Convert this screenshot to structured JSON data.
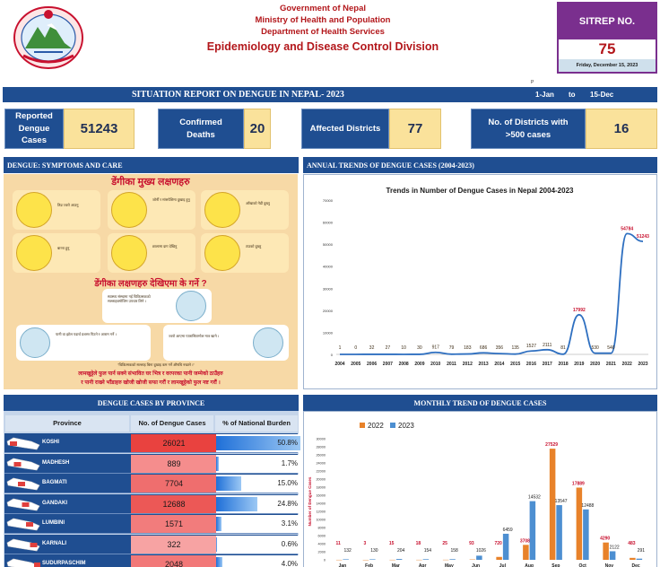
{
  "header": {
    "line1": "Government of Nepal",
    "line2": "Ministry of Health and Population",
    "line3": "Department of Health Services",
    "line4": "Epidemiology and Disease Control Division"
  },
  "sitrep": {
    "label": "SITREP NO.",
    "number": "75",
    "date": "Friday, December 15, 2023"
  },
  "banner": {
    "title": "SITUATION REPORT ON DENGUE IN NEPAL- 2023",
    "from": "1-Jan",
    "to_word": "to",
    "to": "15-Dec",
    "marker": "P"
  },
  "stats": [
    {
      "label": "Reported Dengue Cases",
      "value": "51243"
    },
    {
      "label": "Confirmed Deaths",
      "value": "20"
    },
    {
      "label": "Affected Districts",
      "value": "77"
    },
    {
      "label": "No. of Districts with >500 cases",
      "value": "16"
    }
  ],
  "sections": {
    "symptoms": "DENGUE: SYMPTOMS AND CARE",
    "annual": "ANNUAL TRENDS OF DENGUE CASES (2004-2023)",
    "province": "DENGUE CASES BY PROVINCE",
    "monthly": "MONTHLY TREND OF DENGUE CASES"
  },
  "poster": {
    "title": "डेंगीका मुख्य लक्षणहरु",
    "subtitle": "डेंगीका लक्षणहरु देखिएमा के गर्ने ?",
    "footer1": "लामखुट्टेले फुल पार्न सक्ने संभावित घर भित्र र वरपरका पानी जम्मेको ठाउँहरु",
    "footer2": "र पानी राख्ने भाँडाहरु खोजी खोजी सफा गरौं र लामखुट्टेको फुल नष्ट गरौं ।",
    "symptoms": [
      "तिव्र ज्वरो आउनु",
      "जोर्नी र मांसपेशिमा दुखाइ हुनु",
      "आँखाको गेडी दुख्नु",
      "बान्ता हुनु",
      "छालामा दाग देखिनु",
      "टाउको दुख्नु"
    ],
    "care": [
      "स्वास्थ्य संस्थामा गई चिकित्सकको सल्लाहबमोजिम उपचार लिने ।",
      "पानी वा झोल पदार्थ प्रशस्त पिउने र आराम गर्ने ।",
      "ज्वरो आएमा प्यारासिटामोल मात्र खाने ।"
    ],
    "note": "\"चिकित्सकको सल्लाह बिना दुखाइ कम गर्ने औषधि नखाने ।\""
  },
  "province_table": {
    "headers": [
      "Province",
      "No. of Dengue Cases",
      "% of National Burden"
    ],
    "rows": [
      {
        "name": "KOSHI",
        "cases": "26021",
        "burden_text": "50.8%",
        "burden": 50.8
      },
      {
        "name": "MADHESH",
        "cases": "889",
        "burden_text": "1.7%",
        "burden": 1.7
      },
      {
        "name": "BAGMATI",
        "cases": "7704",
        "burden_text": "15.0%",
        "burden": 15.0
      },
      {
        "name": "GANDAKI",
        "cases": "12688",
        "burden_text": "24.8%",
        "burden": 24.8
      },
      {
        "name": "LUMBINI",
        "cases": "1571",
        "burden_text": "3.1%",
        "burden": 3.1
      },
      {
        "name": "KARNALI",
        "cases": "322",
        "burden_text": "0.6%",
        "burden": 0.6
      },
      {
        "name": "SUDURPASCHIM",
        "cases": "2048",
        "burden_text": "4.0%",
        "burden": 4.0
      }
    ]
  },
  "colors": {
    "navy": "#1f4e91",
    "gold": "#fae29b",
    "red": "#b3171b",
    "purple": "#7a2f8e",
    "series2022": "#e8822a",
    "series2023": "#4d8fd1"
  },
  "chart_data": [
    {
      "type": "line",
      "title": "Trends in Number of Dengue Cases in Nepal 2004-2023",
      "x": [
        "2004",
        "2005",
        "2006",
        "2007",
        "2008",
        "2009",
        "2010",
        "2011",
        "2012",
        "2013",
        "2014",
        "2015",
        "2016",
        "2017",
        "2018",
        "2019",
        "2020",
        "2021",
        "2022",
        "2023"
      ],
      "series": [
        {
          "values": [
            1,
            0,
            32,
            27,
            10,
            30,
            917,
            79,
            183,
            686,
            356,
            135,
            1527,
            2111,
            81,
            17992,
            530,
            540,
            54784,
            51243
          ],
          "labels": [
            "1",
            "0",
            "32",
            "27",
            "10",
            "30",
            "917",
            "79",
            "183",
            "686",
            "356",
            "135",
            "1527",
            "2111",
            "81",
            "17992",
            "530",
            "540",
            "54784",
            "51243"
          ]
        }
      ],
      "yticks": [
        "0",
        "10000",
        "20000",
        "30000",
        "40000",
        "50000",
        "60000",
        "70000"
      ],
      "ylim": [
        0,
        70000
      ],
      "grid": false
    },
    {
      "type": "bar",
      "categories": [
        "Jan",
        "Feb",
        "Mar",
        "Apr",
        "May",
        "Jun",
        "Jul",
        "Aug",
        "Sep",
        "Oct",
        "Nov",
        "Dec"
      ],
      "series": [
        {
          "name": "2022",
          "values": [
            11,
            3,
            15,
            18,
            25,
            93,
            720,
            3708,
            27529,
            17889,
            4290,
            483
          ],
          "labels": [
            "11",
            "3",
            "15",
            "18",
            "25",
            "93",
            "720",
            "3708",
            "27529",
            "17889",
            "4290",
            "483"
          ]
        },
        {
          "name": "2023",
          "values": [
            132,
            130,
            204,
            154,
            158,
            1026,
            6459,
            14532,
            13547,
            12488,
            2122,
            291
          ],
          "labels": [
            "132",
            "130",
            "204",
            "154",
            "158",
            "1026",
            "6459",
            "14532",
            "13547",
            "12488",
            "2122",
            "291"
          ]
        }
      ],
      "ylabel": "Number of Dengue Cases",
      "yticks": [
        "0",
        "2000",
        "4000",
        "6000",
        "8000",
        "10000",
        "12000",
        "14000",
        "16000",
        "18000",
        "20000",
        "22000",
        "24000",
        "26000",
        "28000",
        "30000"
      ],
      "ylim": [
        0,
        30000
      ],
      "legend": "top-left"
    }
  ]
}
